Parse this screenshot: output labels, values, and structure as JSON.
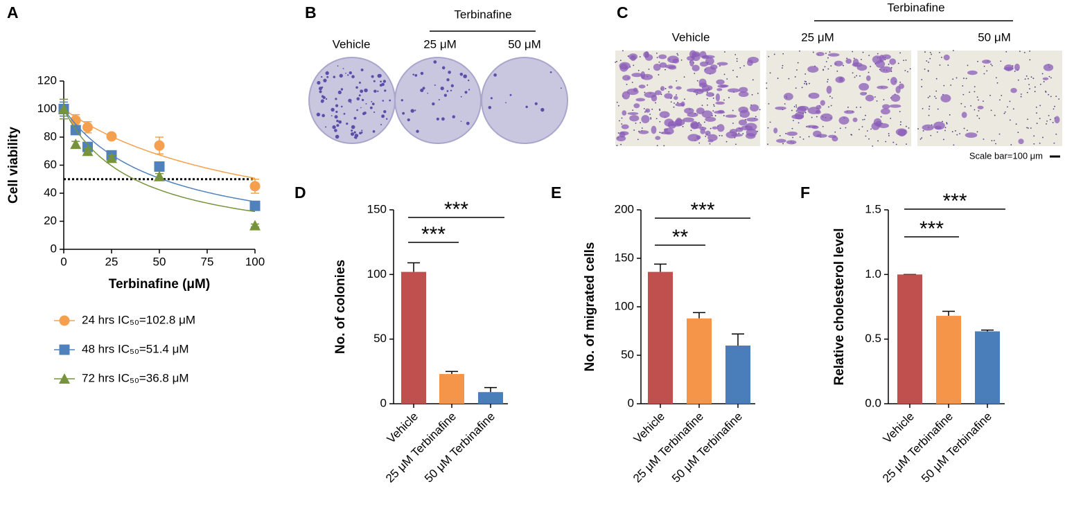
{
  "chart_data": [
    {
      "type": "scatter",
      "panel": "A",
      "xlabel": "Terbinafine (μM)",
      "ylabel": "Cell viability",
      "x": [
        0,
        6.25,
        12.5,
        25,
        50,
        100
      ],
      "xlim": [
        0,
        100
      ],
      "xticks": [
        0,
        25,
        50,
        75,
        100
      ],
      "ylim": [
        0,
        120
      ],
      "yticks": [
        0,
        20,
        40,
        60,
        80,
        100,
        120
      ],
      "hline": 50,
      "series": [
        {
          "name": "24 hrs IC₅₀=102.8 μM",
          "color": "#f5a04f",
          "marker": "circle",
          "ic50": 102.8,
          "values": [
            100,
            92,
            87,
            80.5,
            74,
            45
          ],
          "errors": [
            3,
            4,
            4,
            2,
            6,
            5
          ]
        },
        {
          "name": "48 hrs IC₅₀=51.4 μM",
          "color": "#4f81bd",
          "marker": "square",
          "ic50": 51.4,
          "values": [
            100,
            85,
            73,
            67,
            59,
            31
          ],
          "errors": [
            5,
            3,
            3,
            2,
            2,
            2
          ]
        },
        {
          "name": "72 hrs IC₅₀=36.8 μM",
          "color": "#77933c",
          "marker": "triangle",
          "ic50": 36.8,
          "values": [
            100,
            75,
            70,
            65,
            52,
            17
          ],
          "errors": [
            7,
            2,
            2,
            2,
            2,
            1
          ]
        }
      ]
    },
    {
      "type": "image",
      "panel": "B",
      "group_label": "Terbinafine",
      "labels": [
        "Vehicle",
        "25 μM",
        "50 μM"
      ]
    },
    {
      "type": "image",
      "panel": "C",
      "group_label": "Terbinafine",
      "labels": [
        "Vehicle",
        "25 μM",
        "50 μM"
      ],
      "scale_bar": "Scale bar=100 μm"
    },
    {
      "type": "bar",
      "panel": "D",
      "ylabel": "No. of colonies",
      "categories": [
        "Vehicle",
        "25 μM Terbinafine",
        "50 μM Terbinafine"
      ],
      "values": [
        102,
        23,
        9
      ],
      "errors": [
        7,
        2,
        3.5
      ],
      "colors": [
        "#c0504d",
        "#f5954a",
        "#4a7ebb"
      ],
      "ylim": [
        0,
        150
      ],
      "yticks": [
        0,
        50,
        100,
        150
      ],
      "significance": [
        {
          "from": 0,
          "to": 1,
          "label": "***"
        },
        {
          "from": 0,
          "to": 2,
          "label": "***"
        }
      ]
    },
    {
      "type": "bar",
      "panel": "E",
      "ylabel": "No. of migrated cells",
      "categories": [
        "Vehicle",
        "25 μM Terbinafine",
        "50 μM Terbinafine"
      ],
      "values": [
        136,
        88,
        60
      ],
      "errors": [
        8,
        6,
        12
      ],
      "colors": [
        "#c0504d",
        "#f5954a",
        "#4a7ebb"
      ],
      "ylim": [
        0,
        200
      ],
      "yticks": [
        0,
        50,
        100,
        150,
        200
      ],
      "significance": [
        {
          "from": 0,
          "to": 1,
          "label": "**"
        },
        {
          "from": 0,
          "to": 2,
          "label": "***"
        }
      ]
    },
    {
      "type": "bar",
      "panel": "F",
      "ylabel": "Relative cholesterol level",
      "categories": [
        "Vehicle",
        "25 μM Terbinafine",
        "50 μM Terbinafine"
      ],
      "values": [
        1.0,
        0.68,
        0.56
      ],
      "errors": [
        0,
        0.035,
        0.01
      ],
      "colors": [
        "#c0504d",
        "#f5954a",
        "#4a7ebb"
      ],
      "ylim": [
        0,
        1.5
      ],
      "yticks": [
        {
          "value": 0,
          "label": "0.0"
        },
        {
          "value": 0.5,
          "label": "0.5"
        },
        {
          "value": 1,
          "label": "1.0"
        },
        {
          "value": 1.5,
          "label": "1.5"
        }
      ],
      "significance": [
        {
          "from": 0,
          "to": 1,
          "label": "***"
        },
        {
          "from": 0,
          "to": 2,
          "label": "***"
        }
      ]
    }
  ]
}
